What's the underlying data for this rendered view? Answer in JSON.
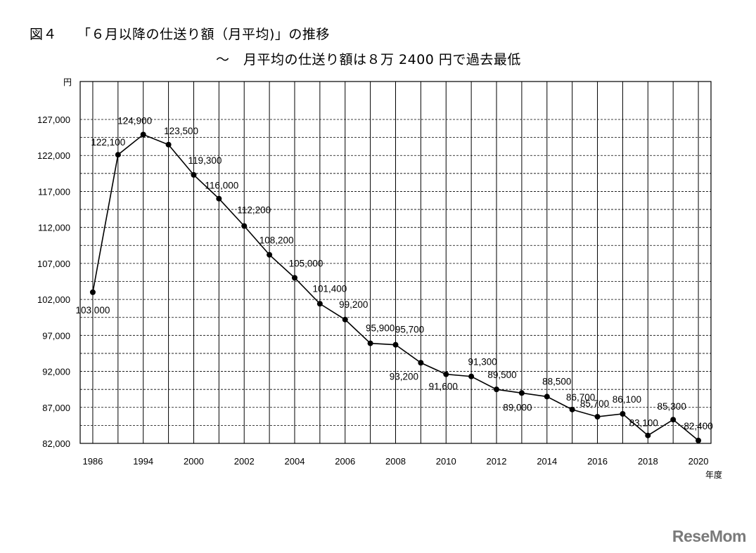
{
  "figure_label": "図４",
  "colors": {
    "line": "#000000",
    "grid": "#000000",
    "watermark": "#7a7a7a"
  },
  "watermark": "ReseMom",
  "chart_data": {
    "type": "line",
    "title": "「６月以降の仕送り額（月平均)」の推移",
    "subtitle": "～　月平均の仕送り額は８万 2400 円で過去最低",
    "ylabel": "円",
    "xlabel": "年度",
    "ylim": [
      82000,
      127000
    ],
    "yticks": [
      "82,000",
      "87,000",
      "92,000",
      "97,000",
      "102,000",
      "107,000",
      "112,000",
      "117,000",
      "122,000",
      "127,000"
    ],
    "xticks": [
      "1986",
      "1994",
      "2000",
      "2002",
      "2004",
      "2006",
      "2008",
      "2010",
      "2012",
      "2014",
      "2016",
      "2018",
      "2020"
    ],
    "grid": true,
    "series": [
      {
        "values": [
          103000,
          122100,
          124900,
          123500,
          119300,
          116000,
          112200,
          108200,
          105000,
          101400,
          99200,
          95900,
          95700,
          93200,
          91600,
          91300,
          89500,
          89000,
          88500,
          86700,
          85700,
          86100,
          83100,
          85300,
          82400
        ],
        "labels": [
          "103,000",
          "122,100",
          "124,900",
          "123,500",
          "119,300",
          "116,000",
          "112,200",
          "108,200",
          "105,000",
          "101,400",
          "99,200",
          "95,900",
          "95,700",
          "93,200",
          "91,600",
          "91,300",
          "89,500",
          "89,000",
          "88,500",
          "86,700",
          "85,700",
          "86,100",
          "83,100",
          "85,300",
          "82,400"
        ]
      }
    ]
  }
}
